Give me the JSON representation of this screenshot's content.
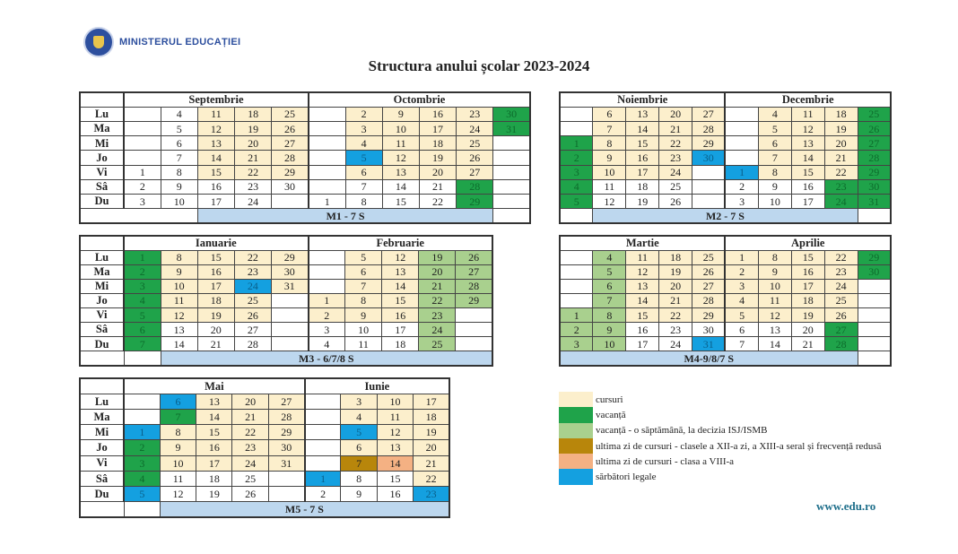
{
  "header": {
    "logo_text": "MINISTERUL EDUCAȚIEI",
    "title": "Structura anului școlar 2023-2024"
  },
  "day_labels": [
    "Lu",
    "Ma",
    "Mi",
    "Jo",
    "Vi",
    "Sâ",
    "Du"
  ],
  "status_colors": {
    "c": "#fcefcc",
    "v": "#1fa34a",
    "w": "#a9d08e",
    "u": "#b8860b",
    "e": "#f4b183",
    "s": "#14a0e0"
  },
  "blocks": [
    {
      "id": "sep-oct",
      "footer": "M1 - 7 S",
      "months": [
        {
          "name": "Septembrie",
          "weeks": [
            [
              "",
              "",
              "",
              "",
              "1",
              "2",
              "3"
            ],
            [
              "4",
              "5",
              "6",
              "7",
              "8",
              "9",
              "10"
            ],
            [
              "11c",
              "12c",
              "13c",
              "14c",
              "15c",
              "16",
              "17"
            ],
            [
              "18c",
              "19c",
              "20c",
              "21c",
              "22c",
              "23",
              "24"
            ],
            [
              "25c",
              "26c",
              "27c",
              "28c",
              "29c",
              "30",
              ""
            ]
          ]
        },
        {
          "name": "Octombrie",
          "weeks": [
            [
              "",
              "",
              "",
              "",
              "",
              "",
              "1"
            ],
            [
              "2c",
              "3c",
              "4c",
              "5s",
              "6c",
              "7",
              "8"
            ],
            [
              "9c",
              "10c",
              "11c",
              "12c",
              "13c",
              "14",
              "15"
            ],
            [
              "16c",
              "17c",
              "18c",
              "19c",
              "20c",
              "21",
              "22"
            ],
            [
              "23c",
              "24c",
              "25c",
              "26c",
              "27c",
              "28v",
              "29v"
            ],
            [
              "30v",
              "31v",
              "",
              "",
              "",
              "",
              ""
            ]
          ]
        }
      ]
    },
    {
      "id": "nov-dec",
      "footer": "M2 - 7 S",
      "months": [
        {
          "name": "Noiembrie",
          "weeks": [
            [
              "",
              "",
              "1v",
              "2v",
              "3v",
              "4v",
              "5v"
            ],
            [
              "6c",
              "7c",
              "8c",
              "9c",
              "10c",
              "11",
              "12"
            ],
            [
              "13c",
              "14c",
              "15c",
              "16c",
              "17c",
              "18",
              "19"
            ],
            [
              "20c",
              "21c",
              "22c",
              "23c",
              "24c",
              "25",
              "26"
            ],
            [
              "27c",
              "28c",
              "29c",
              "30s",
              "",
              "",
              ""
            ]
          ]
        },
        {
          "name": "Decembrie",
          "weeks": [
            [
              "",
              "",
              "",
              "",
              "1s",
              "2",
              "3"
            ],
            [
              "4c",
              "5c",
              "6c",
              "7c",
              "8c",
              "9",
              "10"
            ],
            [
              "11c",
              "12c",
              "13c",
              "14c",
              "15c",
              "16",
              "17"
            ],
            [
              "18c",
              "19c",
              "20c",
              "21c",
              "22c",
              "23v",
              "24v"
            ],
            [
              "25v",
              "26v",
              "27v",
              "28v",
              "29v",
              "30v",
              "31v"
            ]
          ]
        }
      ]
    },
    {
      "id": "jan-feb",
      "footer": "M3 - 6/7/8 S",
      "months": [
        {
          "name": "Ianuarie",
          "weeks": [
            [
              "1v",
              "2v",
              "3v",
              "4v",
              "5v",
              "6v",
              "7v"
            ],
            [
              "8c",
              "9c",
              "10c",
              "11c",
              "12c",
              "13",
              "14"
            ],
            [
              "15c",
              "16c",
              "17c",
              "18c",
              "19c",
              "20",
              "21"
            ],
            [
              "22c",
              "23c",
              "24s",
              "25c",
              "26c",
              "27",
              "28"
            ],
            [
              "29c",
              "30c",
              "31c",
              "",
              "",
              "",
              ""
            ]
          ]
        },
        {
          "name": "Februarie",
          "weeks": [
            [
              "",
              "",
              "",
              "1c",
              "2c",
              "3",
              "4"
            ],
            [
              "5c",
              "6c",
              "7c",
              "8c",
              "9c",
              "10",
              "11"
            ],
            [
              "12c",
              "13c",
              "14c",
              "15c",
              "16c",
              "17",
              "18"
            ],
            [
              "19w",
              "20w",
              "21w",
              "22w",
              "23w",
              "24w",
              "25w"
            ],
            [
              "26w",
              "27w",
              "28w",
              "29w",
              "",
              "",
              ""
            ]
          ]
        }
      ]
    },
    {
      "id": "mar-apr",
      "footer": "M4-9/8/7 S",
      "months": [
        {
          "name": "Martie",
          "weeks": [
            [
              "",
              "",
              "",
              "",
              "1w",
              "2w",
              "3w"
            ],
            [
              "4w",
              "5w",
              "6w",
              "7w",
              "8w",
              "9w",
              "10w"
            ],
            [
              "11c",
              "12c",
              "13c",
              "14c",
              "15c",
              "16",
              "17"
            ],
            [
              "18c",
              "19c",
              "20c",
              "21c",
              "22c",
              "23",
              "24"
            ],
            [
              "25c",
              "26c",
              "27c",
              "28c",
              "29c",
              "30",
              "31s"
            ]
          ]
        },
        {
          "name": "Aprilie",
          "weeks": [
            [
              "1c",
              "2c",
              "3c",
              "4c",
              "5c",
              "6",
              "7"
            ],
            [
              "8c",
              "9c",
              "10c",
              "11c",
              "12c",
              "13",
              "14"
            ],
            [
              "15c",
              "16c",
              "17c",
              "18c",
              "19c",
              "20",
              "21"
            ],
            [
              "22c",
              "23c",
              "24c",
              "25c",
              "26c",
              "27v",
              "28v"
            ],
            [
              "29v",
              "30v",
              "",
              "",
              "",
              "",
              ""
            ]
          ]
        }
      ]
    },
    {
      "id": "may-jun",
      "footer": "M5 - 7 S",
      "months": [
        {
          "name": "Mai",
          "weeks": [
            [
              "",
              "",
              "1s",
              "2v",
              "3v",
              "4v",
              "5s"
            ],
            [
              "6s",
              "7v",
              "8c",
              "9c",
              "10c",
              "11",
              "12"
            ],
            [
              "13c",
              "14c",
              "15c",
              "16c",
              "17c",
              "18",
              "19"
            ],
            [
              "20c",
              "21c",
              "22c",
              "23c",
              "24c",
              "25",
              "26"
            ],
            [
              "27c",
              "28c",
              "29c",
              "30c",
              "31c",
              "",
              ""
            ]
          ]
        },
        {
          "name": "Iunie",
          "weeks": [
            [
              "",
              "",
              "",
              "",
              "",
              "1s",
              "2"
            ],
            [
              "3c",
              "4c",
              "5s",
              "6c",
              "7u",
              "8",
              "9"
            ],
            [
              "10c",
              "11c",
              "12c",
              "13c",
              "14e",
              "15",
              "16"
            ],
            [
              "17c",
              "18c",
              "19c",
              "20c",
              "21c",
              "22c",
              "23s"
            ]
          ]
        }
      ]
    }
  ],
  "legend": [
    {
      "code": "c",
      "label": "cursuri"
    },
    {
      "code": "v",
      "label": "vacanță"
    },
    {
      "code": "w",
      "label": "vacanță - o săptămână, la decizia ISJ/ISMB"
    },
    {
      "code": "u",
      "label": "ultima zi de cursuri - clasele a XII-a zi, a XIII-a seral și frecvență redusă"
    },
    {
      "code": "e",
      "label": "ultima zi de cursuri - clasa a VIII-a"
    },
    {
      "code": "s",
      "label": "sărbători legale"
    }
  ],
  "footer": {
    "website": "www.edu.ro"
  }
}
